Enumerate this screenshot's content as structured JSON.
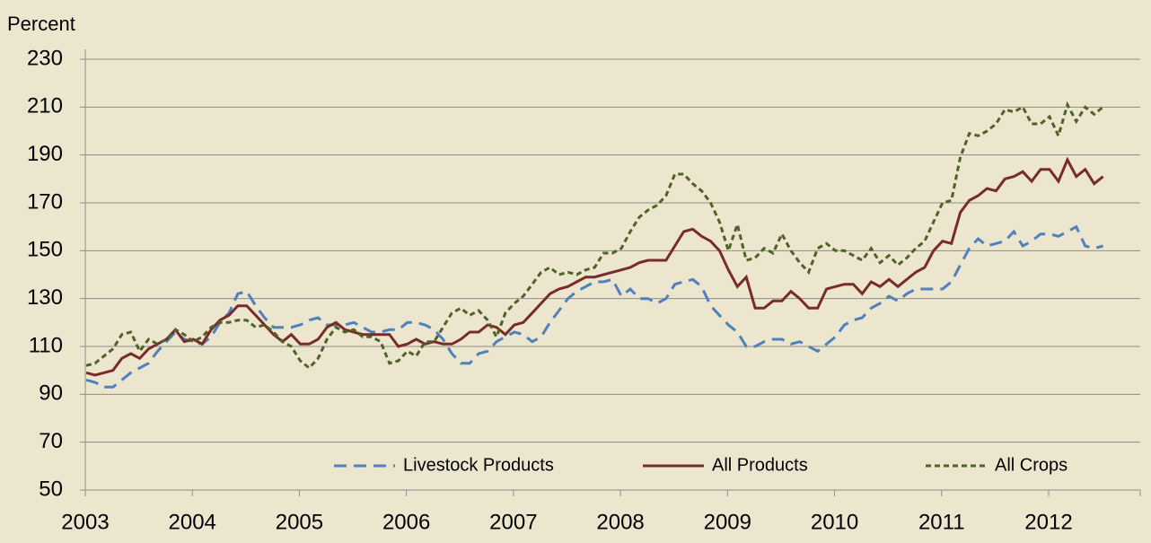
{
  "chart_data": {
    "type": "line",
    "ylabel": "Percent",
    "categories": [
      "2003",
      null,
      null,
      null,
      null,
      null,
      null,
      null,
      null,
      null,
      null,
      null,
      "2004",
      null,
      null,
      null,
      null,
      null,
      null,
      null,
      null,
      null,
      null,
      null,
      "2005",
      null,
      null,
      null,
      null,
      null,
      null,
      null,
      null,
      null,
      null,
      null,
      "2006",
      null,
      null,
      null,
      null,
      null,
      null,
      null,
      null,
      null,
      null,
      null,
      "2007",
      null,
      null,
      null,
      null,
      null,
      null,
      null,
      null,
      null,
      null,
      null,
      "2008",
      null,
      null,
      null,
      null,
      null,
      null,
      null,
      null,
      null,
      null,
      null,
      "2009",
      null,
      null,
      null,
      null,
      null,
      null,
      null,
      null,
      null,
      null,
      null,
      "2010",
      null,
      null,
      null,
      null,
      null,
      null,
      null,
      null,
      null,
      null,
      null,
      "2011",
      null,
      null,
      null,
      null,
      null,
      null,
      null,
      null,
      null,
      null,
      null,
      "2012",
      null,
      null,
      null,
      null,
      null,
      null
    ],
    "series": [
      {
        "name": "Livestock Products",
        "color": "#4f81bd",
        "dash": "long",
        "values": [
          96,
          95,
          93,
          93,
          96,
          99,
          101,
          103,
          108,
          112,
          116,
          113,
          112,
          111,
          114,
          120,
          124,
          132,
          133,
          127,
          122,
          118,
          118,
          118,
          119,
          121,
          122,
          119,
          119,
          119,
          120,
          118,
          116,
          116,
          117,
          117,
          120,
          120,
          119,
          117,
          113,
          107,
          103,
          103,
          107,
          108,
          112,
          114,
          116,
          115,
          112,
          114,
          120,
          125,
          130,
          133,
          135,
          137,
          137,
          138,
          131,
          134,
          130,
          130,
          128,
          130,
          136,
          137,
          138,
          135,
          127,
          123,
          119,
          116,
          110,
          110,
          112,
          113,
          113,
          111,
          112,
          110,
          108,
          111,
          114,
          119,
          121,
          122,
          126,
          128,
          131,
          129,
          132,
          134,
          134,
          134,
          134,
          137,
          144,
          151,
          155,
          152,
          153,
          154,
          158,
          152,
          154,
          157,
          157,
          156,
          158,
          160,
          152,
          151,
          152
        ]
      },
      {
        "name": "All Products",
        "color": "#772c2a",
        "dash": "solid",
        "values": [
          99,
          98,
          99,
          100,
          105,
          107,
          105,
          109,
          111,
          113,
          117,
          112,
          113,
          111,
          117,
          121,
          123,
          127,
          127,
          123,
          119,
          115,
          112,
          115,
          111,
          111,
          113,
          118,
          120,
          117,
          116,
          115,
          115,
          115,
          115,
          110,
          111,
          113,
          111,
          112,
          111,
          111,
          113,
          116,
          116,
          119,
          118,
          115,
          119,
          120,
          124,
          128,
          132,
          134,
          135,
          137,
          139,
          139,
          140,
          141,
          142,
          143,
          145,
          146,
          146,
          146,
          152,
          158,
          159,
          156,
          154,
          150,
          142,
          135,
          139,
          126,
          126,
          129,
          129,
          133,
          130,
          126,
          126,
          134,
          135,
          136,
          136,
          132,
          137,
          135,
          138,
          135,
          138,
          141,
          143,
          150,
          154,
          153,
          166,
          171,
          173,
          176,
          175,
          180,
          181,
          183,
          179,
          184,
          184,
          179,
          188,
          181,
          184,
          178,
          181
        ]
      },
      {
        "name": "All Crops",
        "color": "#4f6228",
        "dash": "short",
        "values": [
          102,
          103,
          106,
          109,
          115,
          116,
          108,
          113,
          111,
          113,
          117,
          115,
          112,
          114,
          118,
          120,
          120,
          121,
          121,
          118,
          119,
          116,
          112,
          110,
          104,
          101,
          105,
          113,
          118,
          116,
          117,
          114,
          114,
          112,
          103,
          104,
          108,
          106,
          112,
          112,
          118,
          124,
          126,
          123,
          125,
          121,
          114,
          124,
          128,
          131,
          136,
          141,
          143,
          140,
          141,
          140,
          142,
          143,
          149,
          149,
          151,
          158,
          164,
          167,
          169,
          173,
          182,
          182,
          178,
          175,
          170,
          162,
          150,
          161,
          146,
          147,
          151,
          149,
          157,
          150,
          145,
          141,
          151,
          153,
          150,
          150,
          148,
          146,
          151,
          145,
          148,
          144,
          147,
          151,
          154,
          162,
          170,
          171,
          189,
          199,
          198,
          200,
          203,
          209,
          208,
          210,
          203,
          203,
          206,
          198,
          211,
          204,
          210,
          207,
          210
        ]
      }
    ],
    "ylim": [
      50,
      230
    ],
    "yticks": [
      50,
      70,
      90,
      110,
      130,
      150,
      170,
      190,
      210,
      230
    ],
    "grid": true
  }
}
